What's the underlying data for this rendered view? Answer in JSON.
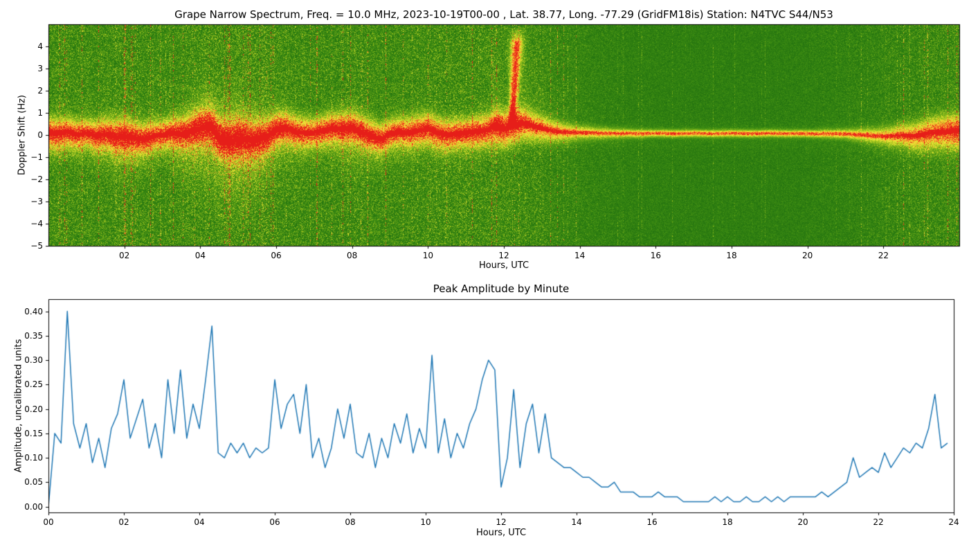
{
  "figure": {
    "background": "#ffffff"
  },
  "chart_data": [
    {
      "type": "heatmap",
      "title": "Grape Narrow Spectrum, Freq. = 10.0 MHz, 2023-10-19T00-00 , Lat.  38.77, Long. -77.29 (GridFM18is) Station: N4TVC S44/N53",
      "xlabel": "Hours, UTC",
      "ylabel": "Doppler Shift (Hz)",
      "xlim": [
        0,
        24
      ],
      "ylim": [
        -5,
        5
      ],
      "xticks": {
        "values": [
          2,
          4,
          6,
          8,
          10,
          12,
          14,
          16,
          18,
          20,
          22
        ],
        "labels": [
          "02",
          "04",
          "06",
          "08",
          "10",
          "12",
          "14",
          "16",
          "18",
          "20",
          "22"
        ]
      },
      "yticks": {
        "values": [
          -5,
          -4,
          -3,
          -2,
          -1,
          0,
          1,
          2,
          3,
          4
        ],
        "labels": [
          "−5",
          "−4",
          "−3",
          "−2",
          "−1",
          "0",
          "1",
          "2",
          "3",
          "4"
        ]
      },
      "colormap": [
        [
          0.0,
          23,
          102,
          15
        ],
        [
          0.18,
          60,
          140,
          18
        ],
        [
          0.38,
          120,
          175,
          25
        ],
        [
          0.55,
          190,
          210,
          35
        ],
        [
          0.7,
          240,
          235,
          60
        ],
        [
          0.82,
          250,
          180,
          45
        ],
        [
          0.92,
          245,
          100,
          35
        ],
        [
          1.0,
          230,
          30,
          25
        ]
      ],
      "trace_step_hours": 0.25,
      "center_trace": [
        0.1,
        0.05,
        0.15,
        0.0,
        0.1,
        -0.05,
        0.05,
        -0.1,
        -0.05,
        -0.15,
        -0.2,
        -0.05,
        0.0,
        0.1,
        0.05,
        0.15,
        0.3,
        0.4,
        -0.1,
        -0.3,
        -0.15,
        -0.25,
        -0.2,
        -0.1,
        0.25,
        0.3,
        0.15,
        0.1,
        0.1,
        0.2,
        0.3,
        0.25,
        0.3,
        0.15,
        -0.05,
        -0.2,
        0.05,
        0.15,
        0.1,
        0.2,
        0.3,
        0.1,
        0.0,
        0.05,
        0.1,
        0.15,
        0.2,
        0.35,
        0.3,
        0.4,
        0.5,
        0.4,
        0.3,
        0.2,
        0.15,
        0.12,
        0.1,
        0.1,
        0.08,
        0.08,
        0.07,
        0.08,
        0.06,
        0.07,
        0.08,
        0.07,
        0.06,
        0.07,
        0.08,
        0.07,
        0.06,
        0.07,
        0.08,
        0.07,
        0.06,
        0.07,
        0.08,
        0.07,
        0.06,
        0.07,
        0.06,
        0.05,
        0.06,
        0.05,
        0.05,
        0.02,
        0.0,
        -0.03,
        -0.05,
        -0.05,
        0.0,
        -0.05,
        0.0,
        0.1,
        0.15,
        0.18,
        0.2
      ],
      "noise_density": [
        0.9,
        0.85,
        0.9,
        0.8,
        0.95,
        1.0,
        0.9,
        0.8,
        0.85,
        0.8,
        0.85,
        0.9,
        0.9,
        0.7,
        0.45,
        0.3,
        0.25,
        0.22,
        0.22,
        0.22,
        0.25,
        0.35,
        0.5,
        0.7,
        0.8
      ],
      "band_width": [
        0.45,
        0.4,
        0.5,
        0.4,
        0.5,
        0.55,
        0.45,
        0.4,
        0.45,
        0.4,
        0.45,
        0.4,
        0.5,
        0.35,
        0.2,
        0.15,
        0.12,
        0.12,
        0.12,
        0.12,
        0.12,
        0.15,
        0.25,
        0.4,
        0.5
      ],
      "band_amp": [
        0.75,
        0.72,
        0.75,
        0.72,
        0.78,
        0.78,
        0.75,
        0.72,
        0.75,
        0.72,
        0.75,
        0.75,
        0.8,
        0.7,
        0.6,
        0.55,
        0.55,
        0.55,
        0.55,
        0.55,
        0.55,
        0.55,
        0.6,
        0.7,
        0.75
      ],
      "below_amp": [
        0.35,
        0.3,
        0.4,
        0.3,
        0.5,
        0.55,
        0.4,
        0.3,
        0.4,
        0.3,
        0.3,
        0.3,
        0.25,
        0.15,
        0.06,
        0.04,
        0.04,
        0.04,
        0.04,
        0.04,
        0.04,
        0.05,
        0.1,
        0.2,
        0.25
      ],
      "below_sigma": [
        0.5,
        0.5,
        0.8,
        0.5,
        1.2,
        1.4,
        0.9,
        0.5,
        0.8,
        0.6,
        0.5,
        0.5,
        0.4,
        0.3,
        0.2,
        0.15,
        0.15,
        0.15,
        0.15,
        0.15,
        0.15,
        0.2,
        0.3,
        0.4,
        0.5
      ],
      "flare": {
        "t_rise": 12.2,
        "f_top": 4.5,
        "fan_decay_hours": 0.55,
        "pre_bump_t": 11.82
      }
    },
    {
      "type": "line",
      "title": "Peak Amplitude by Minute",
      "xlabel": "Hours, UTC",
      "ylabel": "Amplitude, uncalibrated units",
      "xlim": [
        0,
        24
      ],
      "ylim": [
        -0.012,
        0.425
      ],
      "line_color": "#1f77b4",
      "xticks": {
        "values": [
          0,
          2,
          4,
          6,
          8,
          10,
          12,
          14,
          16,
          18,
          20,
          22,
          24
        ],
        "labels": [
          "00",
          "02",
          "04",
          "06",
          "08",
          "10",
          "12",
          "14",
          "16",
          "18",
          "20",
          "22",
          "24"
        ]
      },
      "yticks": {
        "values": [
          0,
          0.05,
          0.1,
          0.15,
          0.2,
          0.25,
          0.3,
          0.35,
          0.4
        ],
        "labels": [
          "0.00",
          "0.05",
          "0.10",
          "0.15",
          "0.20",
          "0.25",
          "0.30",
          "0.35",
          "0.40"
        ]
      },
      "x_start": 0,
      "x_step_hours": 0.1666667,
      "values": [
        0.0,
        0.15,
        0.13,
        0.4,
        0.17,
        0.12,
        0.17,
        0.09,
        0.14,
        0.08,
        0.16,
        0.19,
        0.26,
        0.14,
        0.18,
        0.22,
        0.12,
        0.17,
        0.1,
        0.26,
        0.15,
        0.28,
        0.14,
        0.21,
        0.16,
        0.26,
        0.37,
        0.11,
        0.1,
        0.13,
        0.11,
        0.13,
        0.1,
        0.12,
        0.11,
        0.12,
        0.26,
        0.16,
        0.21,
        0.23,
        0.15,
        0.25,
        0.1,
        0.14,
        0.08,
        0.12,
        0.2,
        0.14,
        0.21,
        0.11,
        0.1,
        0.15,
        0.08,
        0.14,
        0.1,
        0.17,
        0.13,
        0.19,
        0.11,
        0.16,
        0.12,
        0.31,
        0.11,
        0.18,
        0.1,
        0.15,
        0.12,
        0.17,
        0.2,
        0.26,
        0.3,
        0.28,
        0.04,
        0.1,
        0.24,
        0.08,
        0.17,
        0.21,
        0.11,
        0.19,
        0.1,
        0.09,
        0.08,
        0.08,
        0.07,
        0.06,
        0.06,
        0.05,
        0.04,
        0.04,
        0.05,
        0.03,
        0.03,
        0.03,
        0.02,
        0.02,
        0.02,
        0.03,
        0.02,
        0.02,
        0.02,
        0.01,
        0.01,
        0.01,
        0.01,
        0.01,
        0.02,
        0.01,
        0.02,
        0.01,
        0.01,
        0.02,
        0.01,
        0.01,
        0.02,
        0.01,
        0.02,
        0.01,
        0.02,
        0.02,
        0.02,
        0.02,
        0.02,
        0.03,
        0.02,
        0.03,
        0.04,
        0.05,
        0.1,
        0.06,
        0.07,
        0.08,
        0.07,
        0.11,
        0.08,
        0.1,
        0.12,
        0.11,
        0.13,
        0.12,
        0.16,
        0.23,
        0.12,
        0.13
      ]
    }
  ]
}
